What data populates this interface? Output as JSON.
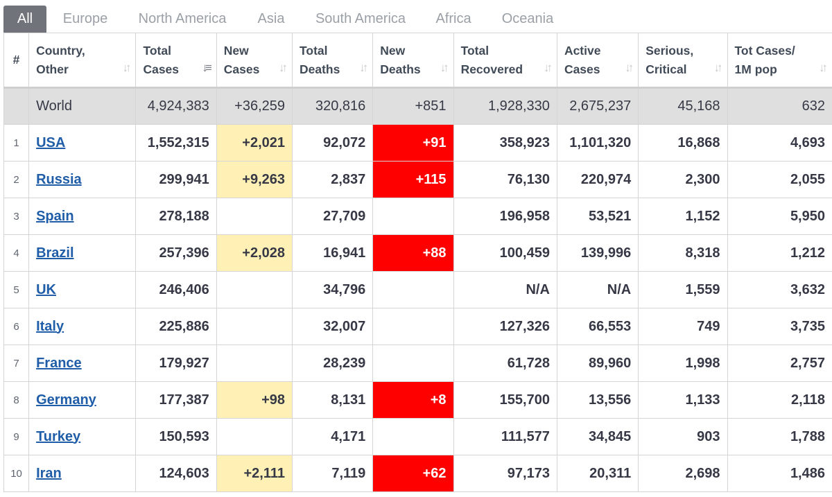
{
  "tabs": [
    "All",
    "Europe",
    "North America",
    "Asia",
    "South America",
    "Africa",
    "Oceania"
  ],
  "headers": {
    "rank": "#",
    "country": "Country, Other",
    "total_cases": "Total Cases",
    "new_cases": "New Cases",
    "total_deaths": "Total Deaths",
    "new_deaths": "New Deaths",
    "total_recovered": "Total Recovered",
    "active_cases": "Active Cases",
    "serious_critical": "Serious, Critical",
    "tot_cases_1m": "Tot Cases/ 1M pop"
  },
  "world": {
    "country": "World",
    "total_cases": "4,924,383",
    "new_cases": "+36,259",
    "total_deaths": "320,816",
    "new_deaths": "+851",
    "total_recovered": "1,928,330",
    "active_cases": "2,675,237",
    "serious_critical": "45,168",
    "tot_cases_1m": "632"
  },
  "rows": [
    {
      "rank": "1",
      "country": "USA",
      "total_cases": "1,552,315",
      "new_cases": "+2,021",
      "total_deaths": "92,072",
      "new_deaths": "+91",
      "total_recovered": "358,923",
      "active_cases": "1,101,320",
      "serious_critical": "16,868",
      "tot_cases_1m": "4,693"
    },
    {
      "rank": "2",
      "country": "Russia",
      "total_cases": "299,941",
      "new_cases": "+9,263",
      "total_deaths": "2,837",
      "new_deaths": "+115",
      "total_recovered": "76,130",
      "active_cases": "220,974",
      "serious_critical": "2,300",
      "tot_cases_1m": "2,055"
    },
    {
      "rank": "3",
      "country": "Spain",
      "total_cases": "278,188",
      "new_cases": "",
      "total_deaths": "27,709",
      "new_deaths": "",
      "total_recovered": "196,958",
      "active_cases": "53,521",
      "serious_critical": "1,152",
      "tot_cases_1m": "5,950"
    },
    {
      "rank": "4",
      "country": "Brazil",
      "total_cases": "257,396",
      "new_cases": "+2,028",
      "total_deaths": "16,941",
      "new_deaths": "+88",
      "total_recovered": "100,459",
      "active_cases": "139,996",
      "serious_critical": "8,318",
      "tot_cases_1m": "1,212"
    },
    {
      "rank": "5",
      "country": "UK",
      "total_cases": "246,406",
      "new_cases": "",
      "total_deaths": "34,796",
      "new_deaths": "",
      "total_recovered": "N/A",
      "active_cases": "N/A",
      "serious_critical": "1,559",
      "tot_cases_1m": "3,632"
    },
    {
      "rank": "6",
      "country": "Italy",
      "total_cases": "225,886",
      "new_cases": "",
      "total_deaths": "32,007",
      "new_deaths": "",
      "total_recovered": "127,326",
      "active_cases": "66,553",
      "serious_critical": "749",
      "tot_cases_1m": "3,735"
    },
    {
      "rank": "7",
      "country": "France",
      "total_cases": "179,927",
      "new_cases": "",
      "total_deaths": "28,239",
      "new_deaths": "",
      "total_recovered": "61,728",
      "active_cases": "89,960",
      "serious_critical": "1,998",
      "tot_cases_1m": "2,757"
    },
    {
      "rank": "8",
      "country": "Germany",
      "total_cases": "177,387",
      "new_cases": "+98",
      "total_deaths": "8,131",
      "new_deaths": "+8",
      "total_recovered": "155,700",
      "active_cases": "13,556",
      "serious_critical": "1,133",
      "tot_cases_1m": "2,118"
    },
    {
      "rank": "9",
      "country": "Turkey",
      "total_cases": "150,593",
      "new_cases": "",
      "total_deaths": "4,171",
      "new_deaths": "",
      "total_recovered": "111,577",
      "active_cases": "34,845",
      "serious_critical": "903",
      "tot_cases_1m": "1,788"
    },
    {
      "rank": "10",
      "country": "Iran",
      "total_cases": "124,603",
      "new_cases": "+2,111",
      "total_deaths": "7,119",
      "new_deaths": "+62",
      "total_recovered": "97,173",
      "active_cases": "20,311",
      "serious_critical": "2,698",
      "tot_cases_1m": "1,486"
    }
  ],
  "colors": {
    "new_cases_highlight": "#fff0b5",
    "new_deaths_highlight": "#ff0000",
    "link": "#1f5da8",
    "active_tab": "#70747a",
    "world_row": "#dfdfdf"
  },
  "icons": {
    "sort": "sort-arrows-icon",
    "sort_active": "sort-descending-icon"
  }
}
